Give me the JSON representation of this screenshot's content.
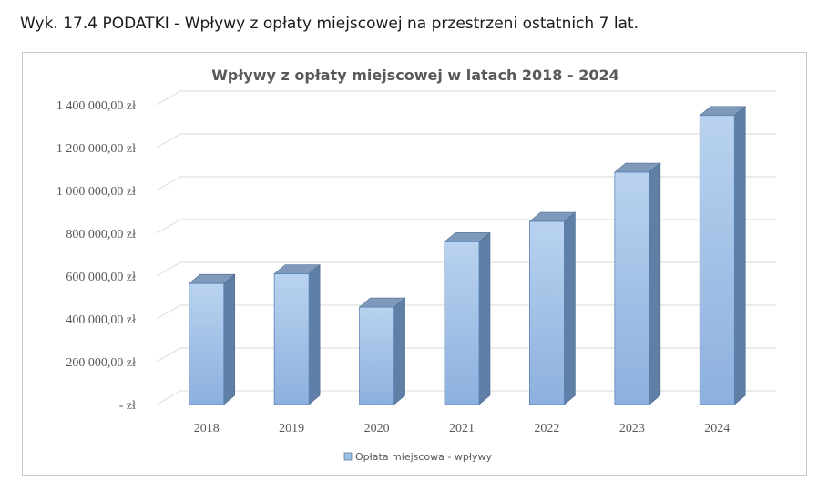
{
  "caption": "Wyk. 17.4 PODATKI - Wpływy z opłaty miejscowej na przestrzeni ostatnich 7 lat.",
  "chart_data": {
    "type": "bar",
    "title": "Wpływy  z opłaty  miejscowej  w latach  2018 - 2024",
    "categories": [
      "2018",
      "2019",
      "2020",
      "2021",
      "2022",
      "2023",
      "2024"
    ],
    "series": [
      {
        "name": "Opłata miejscowa - wpływy",
        "values": [
          565000,
          610000,
          455000,
          760000,
          855000,
          1085000,
          1350000
        ]
      }
    ],
    "ylim": [
      0,
      1400000
    ],
    "yticks": [
      0,
      200000,
      400000,
      600000,
      800000,
      1000000,
      1200000,
      1400000
    ],
    "ytick_labels": [
      "-   zł",
      "200 000,00 zł",
      "400 000,00 zł",
      "600 000,00 zł",
      "800 000,00 zł",
      "1 000 000,00 zł",
      "1 200 000,00 zł",
      "1 400 000,00 zł"
    ],
    "grid": true,
    "legend_position": "bottom",
    "colors": {
      "bar_front": "#9dbfe6",
      "bar_side": "#5f7fa6",
      "bar_top": "#7f99bb",
      "grid": "#d9d9d9"
    }
  }
}
